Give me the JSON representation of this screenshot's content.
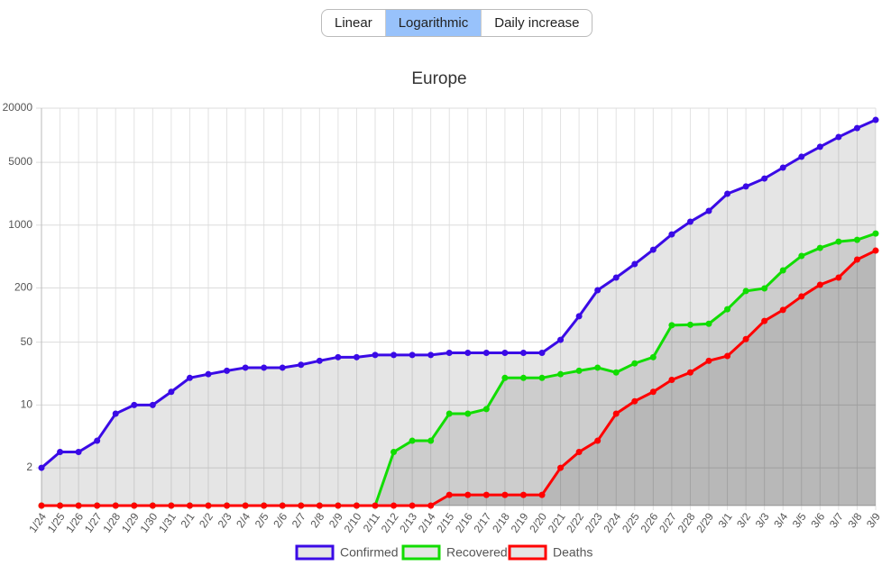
{
  "controls": [
    "Linear",
    "Logarithmic",
    "Daily increase"
  ],
  "active_control": 1,
  "chart_data": {
    "type": "line",
    "title": "Europe",
    "log_scale": true,
    "grid": true,
    "legend": "bottom",
    "fill": true,
    "categories": [
      "1/24",
      "1/25",
      "1/26",
      "1/27",
      "1/28",
      "1/29",
      "1/30",
      "1/31",
      "2/1",
      "2/2",
      "2/3",
      "2/4",
      "2/5",
      "2/6",
      "2/7",
      "2/8",
      "2/9",
      "2/10",
      "2/11",
      "2/12",
      "2/13",
      "2/14",
      "2/15",
      "2/16",
      "2/17",
      "2/18",
      "2/19",
      "2/20",
      "2/21",
      "2/22",
      "2/23",
      "2/24",
      "2/25",
      "2/26",
      "2/27",
      "2/28",
      "2/29",
      "3/1",
      "3/2",
      "3/3",
      "3/4",
      "3/5",
      "3/6",
      "3/7",
      "3/8",
      "3/9"
    ],
    "series": [
      {
        "name": "Confirmed",
        "color": "#3a0ae6",
        "values": [
          2,
          3,
          3,
          4,
          8,
          10,
          10,
          14,
          20,
          22,
          24,
          26,
          26,
          26,
          28,
          31,
          34,
          34,
          36,
          36,
          36,
          36,
          38,
          38,
          38,
          38,
          38,
          38,
          53,
          97,
          189,
          261,
          369,
          533,
          789,
          1091,
          1440,
          2233,
          2690,
          3300,
          4360,
          5760,
          7430,
          9550,
          12000,
          14800
        ]
      },
      {
        "name": "Recovered",
        "color": "#11dd00",
        "values": [
          0,
          0,
          0,
          0,
          0,
          0,
          0,
          0,
          0,
          0,
          0,
          0,
          0,
          0,
          0,
          0,
          0,
          0,
          0,
          3,
          4,
          4,
          8,
          8,
          9,
          20,
          20,
          20,
          22,
          24,
          26,
          23,
          29,
          34,
          77,
          78,
          80,
          116,
          185,
          198,
          314,
          454,
          558,
          656,
          686,
          807
        ]
      },
      {
        "name": "Deaths",
        "color": "#ff0000",
        "values": [
          0,
          0,
          0,
          0,
          0,
          0,
          0,
          0,
          0,
          0,
          0,
          0,
          0,
          0,
          0,
          0,
          0,
          0,
          0,
          0,
          0,
          0,
          1,
          1,
          1,
          1,
          1,
          1,
          2,
          3,
          4,
          8,
          11,
          14,
          19,
          23,
          31,
          35,
          54,
          86,
          114,
          161,
          217,
          261,
          414,
          521
        ]
      }
    ],
    "ylim": [
      0.76,
      20000
    ],
    "yticks": [
      2,
      10,
      50,
      200,
      1000,
      5000,
      20000
    ]
  }
}
